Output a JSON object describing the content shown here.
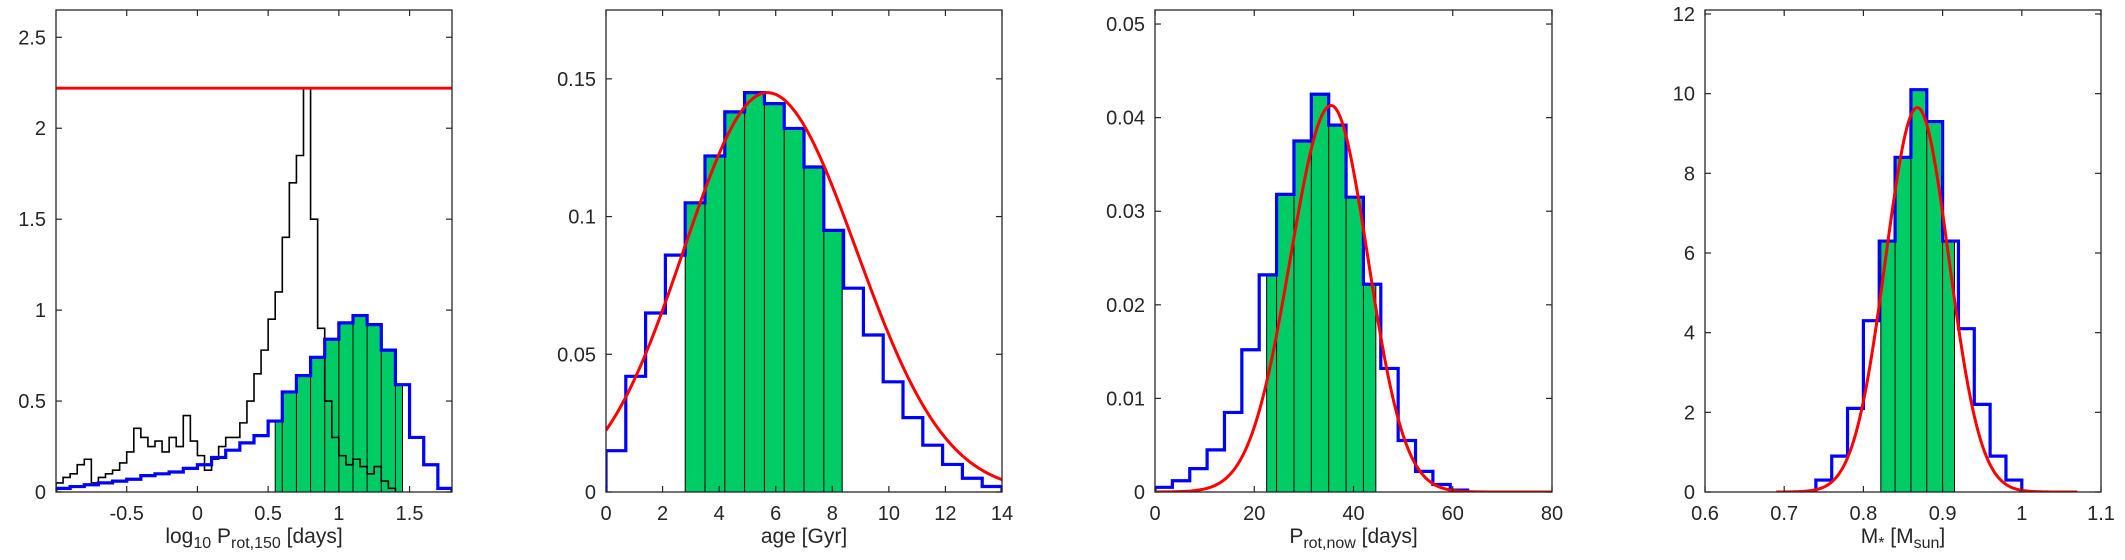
{
  "colors": {
    "fill": "#00cc66",
    "blue": "#0000ff",
    "red": "#ff0000",
    "black": "#000000",
    "axis": "#262626"
  },
  "chart_data": [
    {
      "type": "histogram",
      "name": "log-prot150",
      "xlabel": {
        "main": "log",
        "sub": "10",
        "mid": " P",
        "sub2": "rot,150",
        "tail": "  [days]"
      },
      "xlim": [
        -1.0,
        1.8
      ],
      "ylim": [
        0,
        2.65
      ],
      "xticks": [
        -0.5,
        0,
        0.5,
        1,
        1.5
      ],
      "xtick_labels": [
        "-0.5",
        "0",
        "0.5",
        "1",
        "1.5"
      ],
      "yticks": [
        0,
        0.5,
        1,
        1.5,
        2,
        2.5
      ],
      "ytick_labels": [
        "0",
        "0.5",
        "1",
        "1.5",
        "2",
        "2.5"
      ],
      "blue_hist": {
        "edges": [
          -1.0,
          -0.9,
          -0.8,
          -0.7,
          -0.6,
          -0.5,
          -0.4,
          -0.3,
          -0.2,
          -0.1,
          0.0,
          0.1,
          0.2,
          0.3,
          0.4,
          0.5,
          0.6,
          0.7,
          0.8,
          0.9,
          1.0,
          1.1,
          1.2,
          1.3,
          1.4,
          1.5,
          1.6,
          1.7,
          1.8
        ],
        "values": [
          0.02,
          0.03,
          0.04,
          0.05,
          0.06,
          0.07,
          0.09,
          0.1,
          0.11,
          0.13,
          0.15,
          0.19,
          0.23,
          0.27,
          0.31,
          0.39,
          0.55,
          0.64,
          0.74,
          0.84,
          0.93,
          0.97,
          0.92,
          0.78,
          0.59,
          0.3,
          0.15,
          0.02
        ]
      },
      "black_hist": {
        "edges": [
          -1.0,
          -0.95,
          -0.9,
          -0.85,
          -0.8,
          -0.75,
          -0.7,
          -0.65,
          -0.6,
          -0.55,
          -0.5,
          -0.45,
          -0.4,
          -0.35,
          -0.3,
          -0.25,
          -0.2,
          -0.15,
          -0.1,
          -0.05,
          0.0,
          0.05,
          0.1,
          0.15,
          0.2,
          0.25,
          0.3,
          0.35,
          0.4,
          0.45,
          0.5,
          0.55,
          0.6,
          0.65,
          0.7,
          0.75,
          0.8,
          0.85,
          0.9,
          0.95,
          1.0,
          1.05,
          1.1,
          1.15,
          1.2,
          1.25,
          1.3,
          1.35,
          1.4
        ],
        "values": [
          0.05,
          0.08,
          0.1,
          0.15,
          0.18,
          0.05,
          0.08,
          0.1,
          0.12,
          0.16,
          0.22,
          0.35,
          0.3,
          0.25,
          0.28,
          0.22,
          0.3,
          0.25,
          0.42,
          0.28,
          0.2,
          0.12,
          0.18,
          0.25,
          0.3,
          0.3,
          0.38,
          0.5,
          0.65,
          0.78,
          0.95,
          1.1,
          1.4,
          1.7,
          1.85,
          2.22,
          1.5,
          0.9,
          0.5,
          0.3,
          0.2,
          0.15,
          0.18,
          0.14,
          0.1,
          0.14,
          0.06,
          0.02
        ]
      },
      "fill_range": [
        0.55,
        1.45
      ],
      "red_hline": 2.22
    },
    {
      "type": "histogram",
      "name": "age",
      "xlabel": {
        "main": "age [Gyr]"
      },
      "xlim": [
        0,
        14
      ],
      "ylim": [
        0,
        0.175
      ],
      "xticks": [
        0,
        2,
        4,
        6,
        8,
        10,
        12,
        14
      ],
      "xtick_labels": [
        "0",
        "2",
        "4",
        "6",
        "8",
        "10",
        "12",
        "14"
      ],
      "yticks": [
        0,
        0.05,
        0.1,
        0.15
      ],
      "ytick_labels": [
        "0",
        "0.05",
        "0.1",
        "0.15"
      ],
      "blue_hist": {
        "edges": [
          0.0,
          0.7,
          1.4,
          2.1,
          2.8,
          3.5,
          4.2,
          4.9,
          5.6,
          6.3,
          7.0,
          7.7,
          8.4,
          9.1,
          9.8,
          10.5,
          11.2,
          11.9,
          12.6,
          13.3,
          14.0
        ],
        "values": [
          0.015,
          0.042,
          0.065,
          0.086,
          0.105,
          0.122,
          0.138,
          0.145,
          0.141,
          0.132,
          0.118,
          0.095,
          0.074,
          0.057,
          0.04,
          0.027,
          0.017,
          0.01,
          0.005,
          0.002
        ]
      },
      "fill_range": [
        2.8,
        8.35
      ],
      "red_curve": {
        "mu": 5.7,
        "sigma_left": 2.95,
        "sigma_right": 3.15,
        "amp": 0.145
      }
    },
    {
      "type": "histogram",
      "name": "prot-now",
      "xlabel": {
        "main": "P",
        "sub": "rot,now",
        "tail": "  [days]"
      },
      "xlim": [
        0,
        80
      ],
      "ylim": [
        0,
        0.0515
      ],
      "xticks": [
        0,
        20,
        40,
        60,
        80
      ],
      "xtick_labels": [
        "0",
        "20",
        "40",
        "60",
        "80"
      ],
      "yticks": [
        0,
        0.01,
        0.02,
        0.03,
        0.04,
        0.05
      ],
      "ytick_labels": [
        "0",
        "0.01",
        "0.02",
        "0.03",
        "0.04",
        "0.05"
      ],
      "blue_hist": {
        "edges": [
          0.0,
          3.5,
          7.0,
          10.5,
          14.0,
          17.5,
          21.0,
          24.5,
          28.0,
          31.5,
          35.0,
          38.5,
          42.0,
          45.5,
          49.0,
          52.5,
          56.0,
          59.5,
          63.0
        ],
        "values": [
          0.0005,
          0.0012,
          0.0025,
          0.0045,
          0.0085,
          0.0152,
          0.0232,
          0.0318,
          0.0375,
          0.0425,
          0.0392,
          0.0315,
          0.0222,
          0.0132,
          0.0055,
          0.0022,
          0.0008,
          0.0002
        ]
      },
      "fill_range": [
        22.5,
        44.5
      ],
      "red_curve": {
        "mu": 35.5,
        "sigma_left": 8.2,
        "sigma_right": 7.4,
        "amp": 0.0413
      }
    },
    {
      "type": "histogram",
      "name": "mass",
      "xlabel": {
        "main": "M",
        "sub": "*",
        "mid": " [M",
        "sub2": "sun",
        "tail": "]"
      },
      "xlim": [
        0.6,
        1.1
      ],
      "ylim": [
        0,
        12.1
      ],
      "xticks": [
        0.6,
        0.7,
        0.8,
        0.9,
        1.0,
        1.1
      ],
      "xtick_labels": [
        "0.6",
        "0.7",
        "0.8",
        "0.9",
        "1",
        "1.1"
      ],
      "yticks": [
        0,
        2,
        4,
        6,
        8,
        10,
        12
      ],
      "ytick_labels": [
        "0",
        "2",
        "4",
        "6",
        "8",
        "10",
        "12"
      ],
      "blue_hist": {
        "edges": [
          0.74,
          0.76,
          0.78,
          0.8,
          0.82,
          0.84,
          0.86,
          0.88,
          0.9,
          0.92,
          0.94,
          0.96,
          0.98,
          1.0
        ],
        "values": [
          0.3,
          0.9,
          2.1,
          4.3,
          6.3,
          8.4,
          10.1,
          9.3,
          6.3,
          4.1,
          2.2,
          0.9,
          0.3
        ]
      },
      "fill_range": [
        0.822,
        0.915
      ],
      "red_curve": {
        "mu": 0.868,
        "sigma_left": 0.04,
        "sigma_right": 0.04,
        "amp": 9.65,
        "xmin": 0.69,
        "xmax": 1.07
      }
    }
  ]
}
